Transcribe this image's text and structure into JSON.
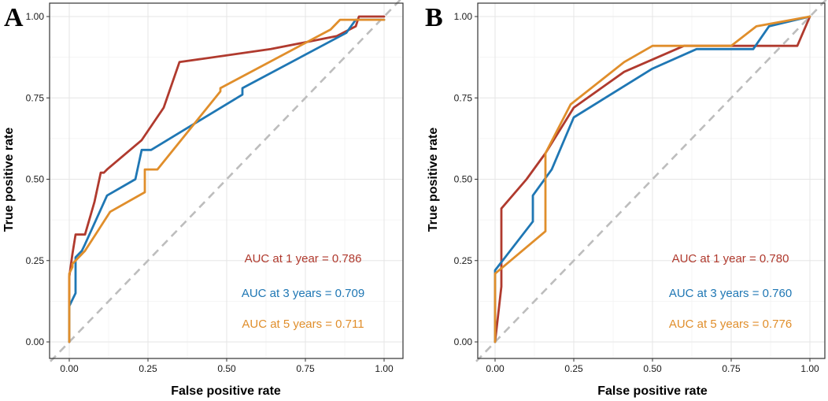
{
  "colors": {
    "year1": "#b03a2e",
    "year3": "#1f77b4",
    "year5": "#e08e2b",
    "diagonal": "#bdbdbd",
    "grid_major": "#e6e6e6",
    "grid_minor": "#f2f2f2",
    "frame": "#333333"
  },
  "chart_data": [
    {
      "type": "line",
      "panel": "A",
      "xlabel": "False positive rate",
      "ylabel": "True positive rate",
      "xlim": [
        0,
        1
      ],
      "ylim": [
        0,
        1
      ],
      "x_ticks": [
        "0.00",
        "0.25",
        "0.50",
        "0.75",
        "1.00"
      ],
      "y_ticks": [
        "0.00",
        "0.25",
        "0.50",
        "0.75",
        "1.00"
      ],
      "reference_line": "diagonal",
      "series": [
        {
          "name": "1 year",
          "color_key": "year1",
          "label": "AUC at 1 year = 0.786",
          "x": [
            0.0,
            0.0,
            0.01,
            0.02,
            0.02,
            0.05,
            0.08,
            0.1,
            0.11,
            0.12,
            0.23,
            0.3,
            0.35,
            0.64,
            0.85,
            0.91,
            0.92,
            1.0
          ],
          "y": [
            0.0,
            0.2,
            0.27,
            0.33,
            0.33,
            0.33,
            0.43,
            0.52,
            0.52,
            0.53,
            0.62,
            0.72,
            0.86,
            0.9,
            0.94,
            0.97,
            1.0,
            1.0
          ]
        },
        {
          "name": "3 years",
          "color_key": "year3",
          "label": "AUC at 3 years = 0.709",
          "x": [
            0.0,
            0.0,
            0.02,
            0.02,
            0.04,
            0.05,
            0.12,
            0.21,
            0.23,
            0.26,
            0.55,
            0.55,
            0.88,
            0.91,
            1.0
          ],
          "y": [
            0.0,
            0.11,
            0.15,
            0.26,
            0.28,
            0.3,
            0.45,
            0.5,
            0.59,
            0.59,
            0.76,
            0.78,
            0.95,
            0.99,
            0.99
          ],
          "label_y": 0.15
        },
        {
          "name": "5 years",
          "color_key": "year5",
          "label": "AUC at 5 years = 0.711",
          "x": [
            0.0,
            0.0,
            0.01,
            0.01,
            0.05,
            0.13,
            0.24,
            0.24,
            0.28,
            0.48,
            0.48,
            0.83,
            0.86,
            0.93,
            1.0
          ],
          "y": [
            0.0,
            0.21,
            0.23,
            0.24,
            0.28,
            0.4,
            0.46,
            0.53,
            0.53,
            0.77,
            0.78,
            0.96,
            0.99,
            0.99,
            0.99
          ],
          "label_y": 0.05
        }
      ]
    },
    {
      "type": "line",
      "panel": "B",
      "xlabel": "False positive rate",
      "ylabel": "True positive rate",
      "xlim": [
        0,
        1
      ],
      "ylim": [
        0,
        1
      ],
      "x_ticks": [
        "0.00",
        "0.25",
        "0.50",
        "0.75",
        "1.00"
      ],
      "y_ticks": [
        "0.00",
        "0.25",
        "0.50",
        "0.75",
        "1.00"
      ],
      "reference_line": "diagonal",
      "series": [
        {
          "name": "1 year",
          "color_key": "year1",
          "label": "AUC at 1 year = 0.780",
          "x": [
            0.0,
            0.02,
            0.02,
            0.02,
            0.1,
            0.16,
            0.25,
            0.41,
            0.6,
            0.75,
            0.96,
            1.0
          ],
          "y": [
            0.0,
            0.17,
            0.38,
            0.41,
            0.5,
            0.58,
            0.72,
            0.83,
            0.91,
            0.91,
            0.91,
            1.0
          ]
        },
        {
          "name": "3 years",
          "color_key": "year3",
          "label": "AUC at 3 years = 0.760",
          "x": [
            0.0,
            0.0,
            0.12,
            0.12,
            0.18,
            0.25,
            0.5,
            0.64,
            0.82,
            0.87,
            1.0
          ],
          "y": [
            0.0,
            0.22,
            0.37,
            0.45,
            0.53,
            0.69,
            0.84,
            0.9,
            0.9,
            0.97,
            1.0
          ]
        },
        {
          "name": "5 years",
          "color_key": "year5",
          "label": "AUC at 5 years = 0.776",
          "x": [
            0.0,
            0.0,
            0.16,
            0.16,
            0.24,
            0.41,
            0.5,
            0.75,
            0.83,
            1.0
          ],
          "y": [
            0.0,
            0.21,
            0.34,
            0.58,
            0.73,
            0.86,
            0.91,
            0.91,
            0.97,
            1.0
          ]
        }
      ]
    }
  ]
}
